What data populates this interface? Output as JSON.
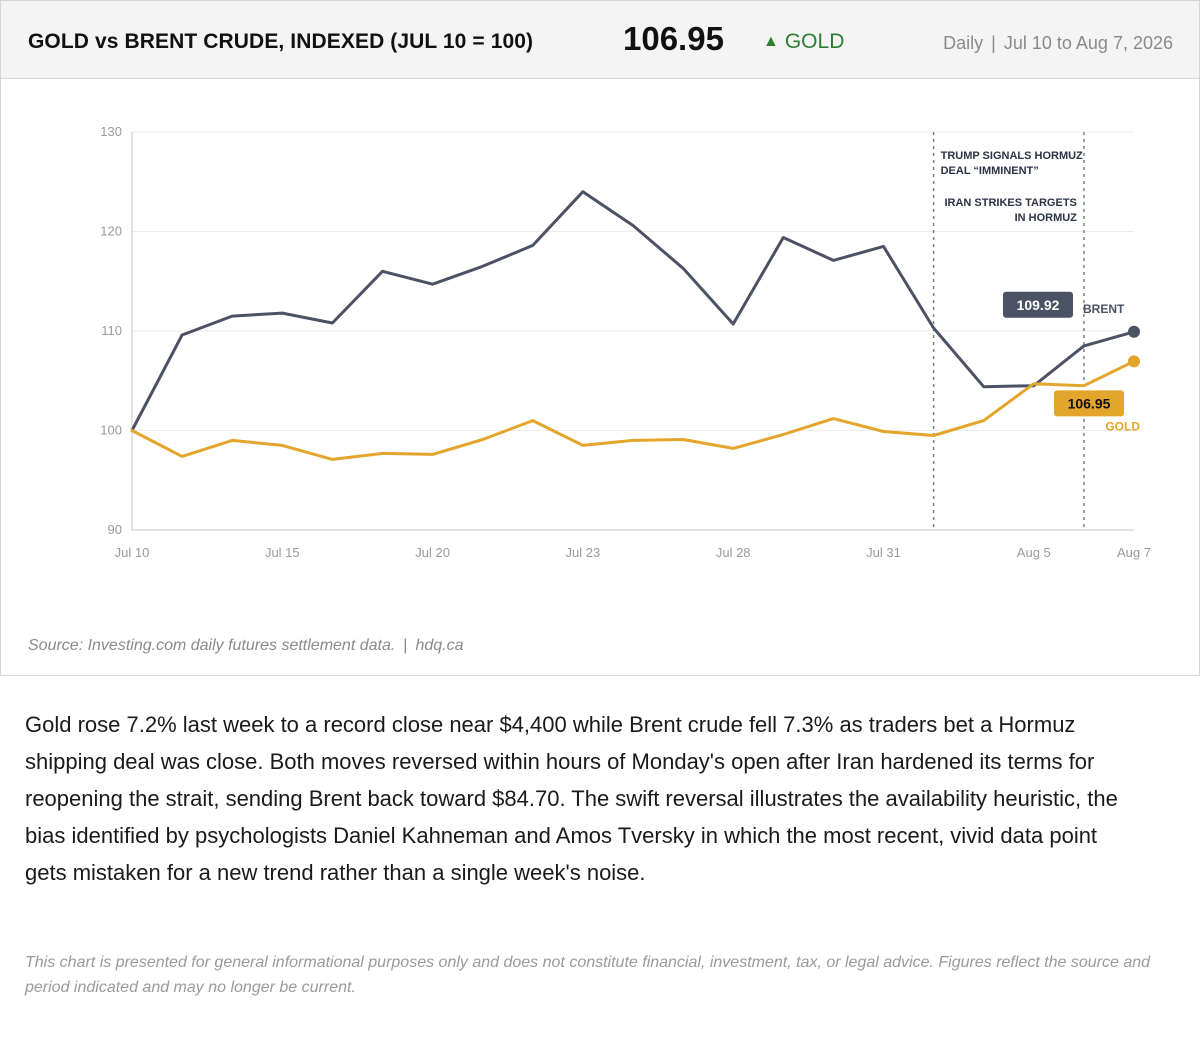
{
  "header": {
    "title": "GOLD vs BRENT CRUDE, INDEXED (JUL 10 = 100)",
    "current_value": "106.95",
    "trend_arrow": "▲",
    "trend_label": "GOLD",
    "frequency": "Daily",
    "separator": "|",
    "date_range": "Jul 10 to Aug 7, 2026"
  },
  "colors": {
    "gold": "#e3a52b",
    "brent": "#4a5263",
    "up": "#2e7d32"
  },
  "chart_data": {
    "type": "line",
    "x": [
      "Jul 10",
      "Jul 13",
      "Jul 14",
      "Jul 15",
      "Jul 16",
      "Jul 17",
      "Jul 20",
      "Jul 21",
      "Jul 22",
      "Jul 23",
      "Jul 24",
      "Jul 27",
      "Jul 28",
      "Jul 29",
      "Jul 30",
      "Jul 31",
      "Aug 3",
      "Aug 4",
      "Aug 5",
      "Aug 6",
      "Aug 7"
    ],
    "x_ticks": [
      {
        "label": "Jul 10",
        "index": 0
      },
      {
        "label": "Jul 15",
        "index": 3
      },
      {
        "label": "Jul 20",
        "index": 6
      },
      {
        "label": "Jul 23",
        "index": 9
      },
      {
        "label": "Jul 28",
        "index": 12
      },
      {
        "label": "Jul 31",
        "index": 15
      },
      {
        "label": "Aug 5",
        "index": 18
      },
      {
        "label": "Aug 7",
        "index": 20
      }
    ],
    "y_ticks": [
      90,
      100,
      110,
      120,
      130
    ],
    "ylim": [
      90,
      130
    ],
    "grid": true,
    "series": [
      {
        "key": "brent",
        "name": "BRENT",
        "end_label": "109.92",
        "values": [
          100,
          109.6,
          111.5,
          111.8,
          110.8,
          116.0,
          114.7,
          116.5,
          118.6,
          124.0,
          120.6,
          116.3,
          110.7,
          119.4,
          117.1,
          118.5,
          110.3,
          104.4,
          104.5,
          108.5,
          109.92
        ]
      },
      {
        "key": "gold",
        "name": "GOLD",
        "end_label": "106.95",
        "values": [
          100,
          97.4,
          99.0,
          98.5,
          97.1,
          97.7,
          97.6,
          99.1,
          101.0,
          98.5,
          99.0,
          99.1,
          98.2,
          99.6,
          101.2,
          99.9,
          99.5,
          101.0,
          104.7,
          104.5,
          106.95
        ]
      }
    ],
    "events": [
      {
        "index": 16,
        "lines": [
          "TRUMP SIGNALS HORMUZ",
          "DEAL “IMMINENT”"
        ]
      },
      {
        "index": 19,
        "lines": [
          "IRAN STRIKES TARGETS",
          "IN HORMUZ"
        ]
      }
    ]
  },
  "footer": {
    "source": "Source: Investing.com daily futures settlement data.",
    "separator": "|",
    "site": "hdq.ca"
  },
  "article": {
    "paragraph": "Gold rose 7.2% last week to a record close near $4,400 while Brent crude fell 7.3% as traders bet a Hormuz shipping deal was close. Both moves reversed within hours of Monday's open after Iran hardened its terms for reopening the strait, sending Brent back toward $84.70. The swift reversal illustrates the availability heuristic, the bias identified by psychologists Daniel Kahneman and Amos Tversky in which the most recent, vivid data point gets mistaken for a new trend rather than a single week's noise.",
    "disclaimer": "This chart is presented for general informational purposes only and does not constitute financial, investment, tax, or legal advice. Figures reflect the source and period indicated and may no longer be current."
  }
}
